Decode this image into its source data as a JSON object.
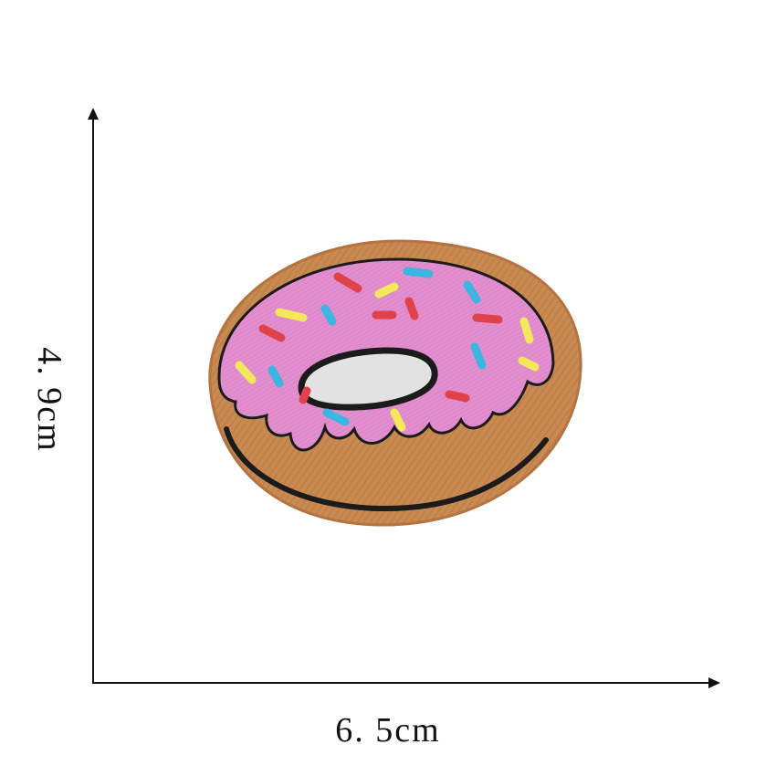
{
  "dimensions": {
    "height_label": "4. 9cm",
    "width_label": "6. 5cm"
  },
  "colors": {
    "dough": "#c98a52",
    "dough_edge": "#b47340",
    "icing": "#e38fcf",
    "icing_edge": "#cf76bb",
    "outline": "#1b1b1b",
    "hole": "#e2e2e2",
    "sprinkle_red": "#e0424a",
    "sprinkle_blue": "#3ab6e0",
    "sprinkle_yellow": "#f2e85a"
  },
  "icons": {
    "patch": "donut-patch-icon"
  }
}
